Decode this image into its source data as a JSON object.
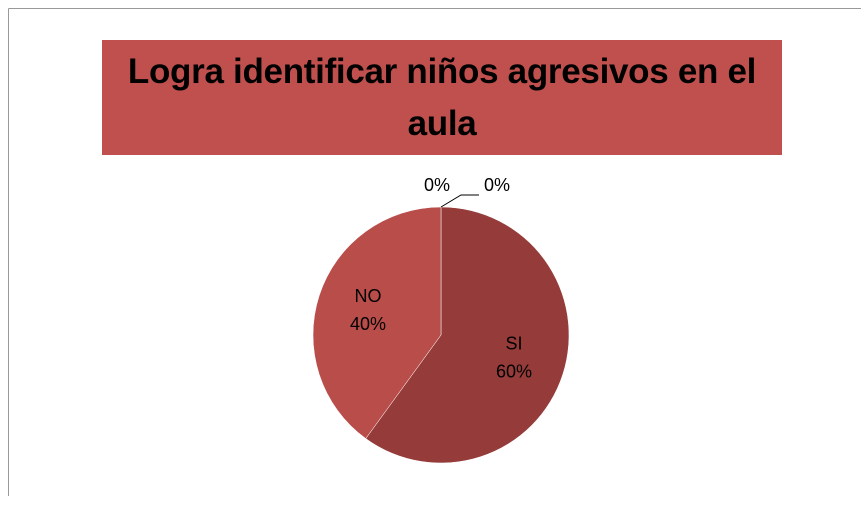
{
  "chart_data": {
    "type": "pie",
    "title": "Logra identificar niños agresivos en el aula",
    "categories": [
      "SI",
      "NO",
      null,
      null
    ],
    "values": [
      60,
      40,
      0,
      0
    ],
    "value_labels": [
      "60%",
      "40%",
      "0%",
      "0%"
    ],
    "colors": [
      "#953b39",
      "#b94d4a",
      "#c0504d",
      "#c0504d"
    ],
    "title_background": "#c0504d"
  }
}
